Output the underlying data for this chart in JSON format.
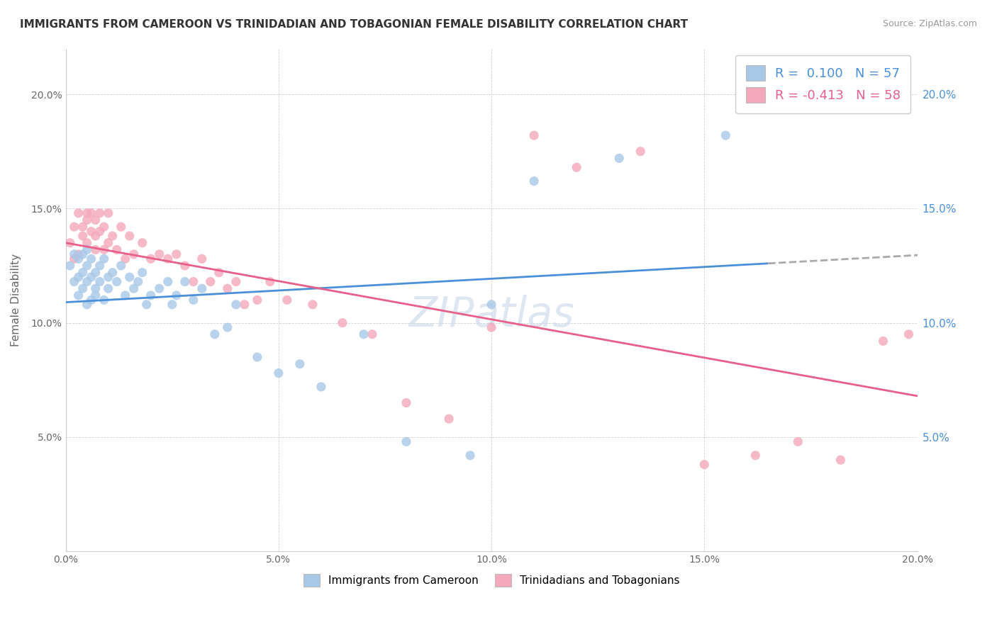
{
  "title": "IMMIGRANTS FROM CAMEROON VS TRINIDADIAN AND TOBAGONIAN FEMALE DISABILITY CORRELATION CHART",
  "source": "Source: ZipAtlas.com",
  "ylabel": "Female Disability",
  "legend_label_blue": "Immigrants from Cameroon",
  "legend_label_pink": "Trinidadians and Tobagonians",
  "r_blue": 0.1,
  "n_blue": 57,
  "r_pink": -0.413,
  "n_pink": 58,
  "xlim": [
    0.0,
    0.2
  ],
  "ylim": [
    0.0,
    0.22
  ],
  "xticks": [
    0.0,
    0.05,
    0.1,
    0.15,
    0.2
  ],
  "yticks": [
    0.05,
    0.1,
    0.15,
    0.2
  ],
  "color_blue": "#A8C8E8",
  "color_pink": "#F4A8BB",
  "line_color_blue": "#4A90D9",
  "line_color_pink": "#E8608A",
  "blue_line_x0": 0.0,
  "blue_line_y0": 0.109,
  "blue_line_x1": 0.165,
  "blue_line_y1": 0.126,
  "blue_line_xd0": 0.165,
  "blue_line_xd1": 0.205,
  "pink_line_x0": 0.0,
  "pink_line_y0": 0.135,
  "pink_line_x1": 0.2,
  "pink_line_y1": 0.068,
  "blue_x": [
    0.001,
    0.002,
    0.002,
    0.003,
    0.003,
    0.003,
    0.004,
    0.004,
    0.004,
    0.005,
    0.005,
    0.005,
    0.005,
    0.006,
    0.006,
    0.006,
    0.007,
    0.007,
    0.007,
    0.008,
    0.008,
    0.009,
    0.009,
    0.01,
    0.01,
    0.011,
    0.012,
    0.013,
    0.014,
    0.015,
    0.016,
    0.017,
    0.018,
    0.019,
    0.02,
    0.022,
    0.024,
    0.025,
    0.026,
    0.028,
    0.03,
    0.032,
    0.035,
    0.038,
    0.04,
    0.045,
    0.05,
    0.055,
    0.06,
    0.07,
    0.08,
    0.095,
    0.1,
    0.11,
    0.13,
    0.155,
    0.165
  ],
  "blue_y": [
    0.125,
    0.118,
    0.13,
    0.12,
    0.112,
    0.128,
    0.115,
    0.122,
    0.13,
    0.108,
    0.118,
    0.125,
    0.132,
    0.11,
    0.12,
    0.128,
    0.115,
    0.122,
    0.112,
    0.125,
    0.118,
    0.11,
    0.128,
    0.12,
    0.115,
    0.122,
    0.118,
    0.125,
    0.112,
    0.12,
    0.115,
    0.118,
    0.122,
    0.108,
    0.112,
    0.115,
    0.118,
    0.108,
    0.112,
    0.118,
    0.11,
    0.115,
    0.095,
    0.098,
    0.108,
    0.085,
    0.078,
    0.082,
    0.072,
    0.095,
    0.048,
    0.042,
    0.108,
    0.162,
    0.172,
    0.182,
    0.198
  ],
  "pink_x": [
    0.001,
    0.002,
    0.002,
    0.003,
    0.003,
    0.004,
    0.004,
    0.005,
    0.005,
    0.005,
    0.006,
    0.006,
    0.007,
    0.007,
    0.007,
    0.008,
    0.008,
    0.009,
    0.009,
    0.01,
    0.01,
    0.011,
    0.012,
    0.013,
    0.014,
    0.015,
    0.016,
    0.018,
    0.02,
    0.022,
    0.024,
    0.026,
    0.028,
    0.03,
    0.032,
    0.034,
    0.036,
    0.038,
    0.04,
    0.042,
    0.045,
    0.048,
    0.052,
    0.058,
    0.065,
    0.072,
    0.08,
    0.09,
    0.1,
    0.11,
    0.12,
    0.135,
    0.15,
    0.162,
    0.172,
    0.182,
    0.192,
    0.198
  ],
  "pink_y": [
    0.135,
    0.128,
    0.142,
    0.13,
    0.148,
    0.138,
    0.142,
    0.145,
    0.135,
    0.148,
    0.14,
    0.148,
    0.138,
    0.132,
    0.145,
    0.14,
    0.148,
    0.132,
    0.142,
    0.135,
    0.148,
    0.138,
    0.132,
    0.142,
    0.128,
    0.138,
    0.13,
    0.135,
    0.128,
    0.13,
    0.128,
    0.13,
    0.125,
    0.118,
    0.128,
    0.118,
    0.122,
    0.115,
    0.118,
    0.108,
    0.11,
    0.118,
    0.11,
    0.108,
    0.1,
    0.095,
    0.065,
    0.058,
    0.098,
    0.182,
    0.168,
    0.175,
    0.038,
    0.042,
    0.048,
    0.04,
    0.092,
    0.095
  ]
}
